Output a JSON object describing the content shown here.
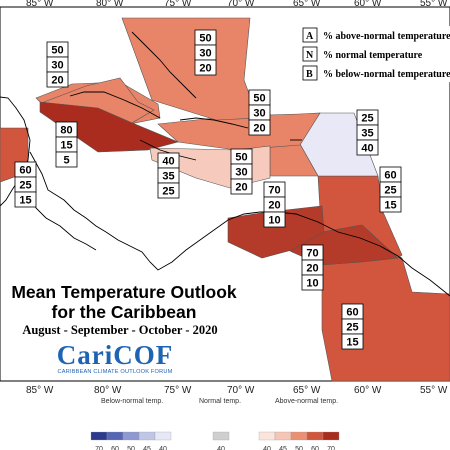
{
  "map": {
    "title_line1": "Mean Temperature Outlook",
    "title_line2": "for the Caribbean",
    "subtitle": "August - September - October - 2020",
    "logo": {
      "name": "CariCOF",
      "tagline": "CARIBBEAN CLIMATE OUTLOOK FORUM"
    },
    "longitude_labels_top": [
      "85° W",
      "80° W",
      "75° W",
      "70° W",
      "65° W",
      "60° W",
      "55° W"
    ],
    "longitude_labels_bottom": [
      "85° W",
      "80° W",
      "75° W",
      "70° W",
      "65° W",
      "60° W",
      "55° W"
    ],
    "key": [
      {
        "letter": "A",
        "text": "% above-normal temperature"
      },
      {
        "letter": "N",
        "text": "% normal temperature"
      },
      {
        "letter": "B",
        "text": "% below-normal temperature"
      }
    ],
    "regions": [
      {
        "id": "bahamas",
        "A": "50",
        "N": "30",
        "B": "20",
        "color": "#e88568"
      },
      {
        "id": "turks",
        "A": "50",
        "N": "30",
        "B": "20",
        "color": "#e88568"
      },
      {
        "id": "cuba",
        "A": "50",
        "N": "30",
        "B": "20",
        "color": "#e88568"
      },
      {
        "id": "hispaniola",
        "A": "50",
        "N": "30",
        "B": "20",
        "color": "#e88568"
      },
      {
        "id": "jamaica",
        "A": "80",
        "N": "15",
        "B": "5",
        "color": "#a92c1f"
      },
      {
        "id": "central_sea",
        "A": "40",
        "N": "35",
        "B": "25",
        "color": "#f6cbbd"
      },
      {
        "id": "puerto_rico",
        "A": "50",
        "N": "30",
        "B": "20",
        "color": "#e88568"
      },
      {
        "id": "virgin_islands",
        "A": "25",
        "N": "35",
        "B": "40",
        "color": "#e8e8f6"
      },
      {
        "id": "belize",
        "A": "60",
        "N": "25",
        "B": "15",
        "color": "#d2563d"
      },
      {
        "id": "lesser_antilles",
        "A": "60",
        "N": "25",
        "B": "15",
        "color": "#d2563d"
      },
      {
        "id": "abc_islands",
        "A": "70",
        "N": "20",
        "B": "10",
        "color": "#b43a29"
      },
      {
        "id": "trinidad",
        "A": "70",
        "N": "20",
        "B": "10",
        "color": "#b43a29"
      },
      {
        "id": "guianas",
        "A": "60",
        "N": "25",
        "B": "15",
        "color": "#d2563d"
      }
    ],
    "color_scale": {
      "below_label": "Below-normal temp.",
      "normal_label": "Normal temp.",
      "above_label": "Above-normal temp.",
      "below": [
        {
          "value": "70",
          "color": "#2b3a8f"
        },
        {
          "value": "60",
          "color": "#5566b5"
        },
        {
          "value": "50",
          "color": "#8d99d0"
        },
        {
          "value": "45",
          "color": "#bfc6e6"
        },
        {
          "value": "40",
          "color": "#e6e8f6"
        }
      ],
      "normal": [
        {
          "value": "40",
          "color": "#cfcfcf"
        }
      ],
      "above": [
        {
          "value": "40",
          "color": "#fbe4dc"
        },
        {
          "value": "45",
          "color": "#f6c5b6"
        },
        {
          "value": "50",
          "color": "#eb9073"
        },
        {
          "value": "60",
          "color": "#d2563d"
        },
        {
          "value": "70",
          "color": "#a92c1f"
        }
      ]
    }
  }
}
